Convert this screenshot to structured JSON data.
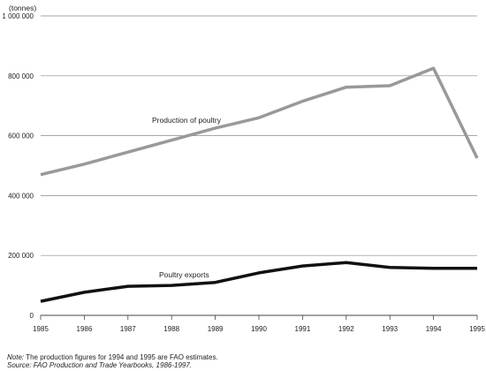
{
  "chart_data": {
    "type": "line",
    "title": "",
    "ylabel": "(tonnes)",
    "xlabel": "",
    "x": [
      1985,
      1986,
      1987,
      1988,
      1989,
      1990,
      1991,
      1992,
      1993,
      1994,
      1995
    ],
    "x_tick_labels": [
      "1985",
      "1986",
      "1987",
      "1988",
      "1989",
      "1990",
      "1991",
      "1992",
      "1993",
      "1994",
      "1995"
    ],
    "ylim": [
      0,
      1000000
    ],
    "y_ticks": [
      0,
      200000,
      400000,
      600000,
      800000,
      1000000
    ],
    "y_tick_labels": [
      "0",
      "200 000",
      "400 000",
      "600 000",
      "800 000",
      "1 000 000"
    ],
    "grid": "horizontal",
    "series": [
      {
        "name": "Production of poultry",
        "color": "#999999",
        "values": [
          470000,
          505000,
          545000,
          585000,
          625000,
          660000,
          715000,
          762000,
          767000,
          825000,
          525000
        ]
      },
      {
        "name": "Poultry exports",
        "color": "#111111",
        "values": [
          47000,
          77000,
          97000,
          100000,
          110000,
          142000,
          165000,
          176000,
          160000,
          157000,
          157000
        ]
      }
    ]
  },
  "notes": {
    "note_label": "Note:",
    "note_text": " The production figures for 1994 and 1995 are FAO estimates.",
    "source_text": "Source: FAO Production and Trade Yearbooks, 1986-1997."
  }
}
